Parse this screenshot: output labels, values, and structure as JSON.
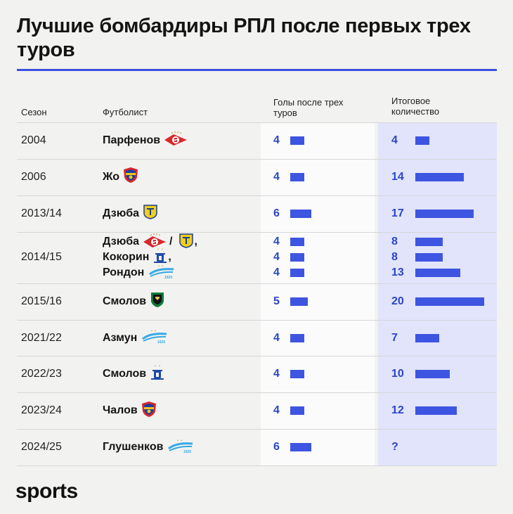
{
  "title": "Лучшие бомбардиры РПЛ после первых трех туров",
  "brand": "sports",
  "colors": {
    "accent": "#3d55e0",
    "number": "#2c45c8",
    "highlight_column": "#e1e4fb"
  },
  "chart_data": {
    "type": "table",
    "columns": [
      "Сезон",
      "Футболист",
      "Голы после трех туров",
      "Итоговое количество"
    ],
    "rows": [
      {
        "season": "2004",
        "players": [
          {
            "name": "Парфенов",
            "clubs": [
              "spartak-logo-icon"
            ],
            "goals_3": 4,
            "total": "4"
          }
        ]
      },
      {
        "season": "2006",
        "players": [
          {
            "name": "Жо",
            "clubs": [
              "cska-logo-icon"
            ],
            "goals_3": 4,
            "total": "14"
          }
        ]
      },
      {
        "season": "2013/14",
        "players": [
          {
            "name": "Дзюба",
            "clubs": [
              "rostov-logo-icon"
            ],
            "goals_3": 6,
            "total": "17"
          }
        ]
      },
      {
        "season": "2014/15",
        "players": [
          {
            "name": "Дзюба",
            "clubs": [
              "spartak-logo-icon",
              "rostov-logo-icon"
            ],
            "separator": "/",
            "suffix": ",",
            "goals_3": 4,
            "total": "8"
          },
          {
            "name": "Кокорин",
            "clubs": [
              "dynamo-logo-icon"
            ],
            "suffix": ",",
            "goals_3": 4,
            "total": "8"
          },
          {
            "name": "Рондон",
            "clubs": [
              "zenit-logo-icon"
            ],
            "goals_3": 4,
            "total": "13"
          }
        ]
      },
      {
        "season": "2015/16",
        "players": [
          {
            "name": "Смолов",
            "clubs": [
              "krasnodar-logo-icon"
            ],
            "goals_3": 5,
            "total": "20"
          }
        ]
      },
      {
        "season": "2021/22",
        "players": [
          {
            "name": "Азмун",
            "clubs": [
              "zenit-logo-icon"
            ],
            "goals_3": 4,
            "total": "7"
          }
        ]
      },
      {
        "season": "2022/23",
        "players": [
          {
            "name": "Смолов",
            "clubs": [
              "dynamo-logo-icon"
            ],
            "goals_3": 4,
            "total": "10"
          }
        ]
      },
      {
        "season": "2023/24",
        "players": [
          {
            "name": "Чалов",
            "clubs": [
              "cska-logo-icon"
            ],
            "goals_3": 4,
            "total": "12"
          }
        ]
      },
      {
        "season": "2024/25",
        "players": [
          {
            "name": "Глушенков",
            "clubs": [
              "zenit-logo-icon"
            ],
            "goals_3": 6,
            "total": "?"
          }
        ]
      }
    ]
  }
}
